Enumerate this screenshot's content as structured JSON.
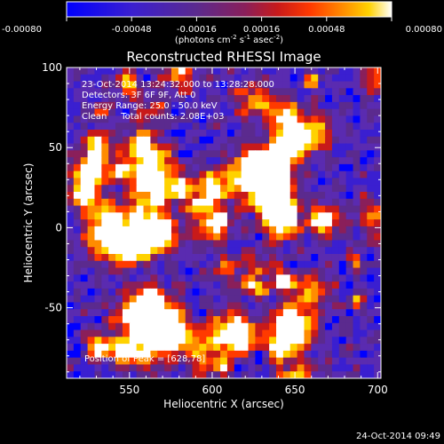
{
  "chart_data": {
    "type": "heatmap",
    "title": "Reconstructed RHESSI Image",
    "xlabel": "Heliocentric X (arcsec)",
    "ylabel": "Heliocentric Y (arcsec)",
    "xlim": [
      512,
      702
    ],
    "ylim": [
      -94,
      100
    ],
    "x_ticks": [
      550,
      600,
      650,
      700
    ],
    "y_ticks": [
      -50,
      0,
      50,
      100
    ],
    "colorbar": {
      "range": [
        -0.0008,
        0.0008
      ],
      "tick_labels": [
        "-0.00080",
        "-0.00048",
        "-0.00016",
        "0.00016",
        "0.00048",
        "0.00080"
      ],
      "unit_parts": [
        "(photons cm",
        "-2",
        " s",
        "-1",
        " asec",
        "-2",
        ")"
      ]
    },
    "annotations": [
      "23-Oct-2014 13:24:32.000 to 13:28:28.000",
      "Detectors: 3F 6F 9F, Att 0",
      "Energy Range: 25.0 - 50.0 keV",
      "Clean     Total counts: 2.08E+03"
    ],
    "peak_label": "Position of Peak = [628,78]",
    "peak_position": [
      628,
      78
    ],
    "timestamp": "24-Oct-2014 09:49",
    "grid": false,
    "colors": {
      "background": "#000000",
      "axes": "#ffffff",
      "colormap": [
        "#0000ff",
        "#3a1fd0",
        "#5a2bb0",
        "#5b2a8e",
        "#8a1f5a",
        "#c81a1a",
        "#ff3a00",
        "#ff8c00",
        "#ffd200",
        "#ffffff"
      ]
    }
  }
}
